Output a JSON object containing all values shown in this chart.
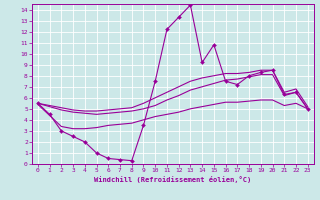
{
  "xlabel": "Windchill (Refroidissement éolien,°C)",
  "background_color": "#cce8e8",
  "grid_color": "#ffffff",
  "line_color": "#990099",
  "x_ticks": [
    0,
    1,
    2,
    3,
    4,
    5,
    6,
    7,
    8,
    9,
    10,
    11,
    12,
    13,
    14,
    15,
    16,
    17,
    18,
    19,
    20,
    21,
    22,
    23
  ],
  "y_ticks": [
    0,
    1,
    2,
    3,
    4,
    5,
    6,
    7,
    8,
    9,
    10,
    11,
    12,
    13,
    14
  ],
  "xlim": [
    -0.5,
    23.5
  ],
  "ylim": [
    0,
    14.5
  ],
  "series": [
    {
      "x": [
        0,
        1,
        2,
        3,
        4,
        5,
        6,
        7,
        8,
        9,
        10,
        11,
        12,
        13,
        14,
        15,
        16,
        17,
        18,
        19,
        20,
        21,
        22,
        23
      ],
      "y": [
        5.5,
        4.5,
        3.0,
        2.5,
        2.0,
        1.0,
        0.5,
        0.4,
        0.3,
        3.5,
        7.5,
        12.2,
        13.3,
        14.4,
        9.2,
        10.8,
        7.5,
        7.2,
        8.0,
        8.3,
        8.5,
        6.3,
        6.5,
        5.0
      ],
      "marker": "D",
      "markersize": 2.0,
      "linewidth": 0.8
    },
    {
      "x": [
        0,
        1,
        2,
        3,
        4,
        5,
        6,
        7,
        8,
        9,
        10,
        11,
        12,
        13,
        14,
        15,
        16,
        17,
        18,
        19,
        20,
        21,
        22,
        23
      ],
      "y": [
        5.5,
        5.3,
        5.1,
        4.9,
        4.8,
        4.8,
        4.9,
        5.0,
        5.1,
        5.5,
        6.0,
        6.5,
        7.0,
        7.5,
        7.8,
        8.0,
        8.2,
        8.2,
        8.3,
        8.5,
        8.5,
        6.5,
        6.8,
        5.2
      ],
      "marker": null,
      "markersize": 0,
      "linewidth": 0.8
    },
    {
      "x": [
        0,
        1,
        2,
        3,
        4,
        5,
        6,
        7,
        8,
        9,
        10,
        11,
        12,
        13,
        14,
        15,
        16,
        17,
        18,
        19,
        20,
        21,
        22,
        23
      ],
      "y": [
        5.5,
        5.2,
        4.9,
        4.7,
        4.6,
        4.5,
        4.6,
        4.7,
        4.8,
        5.0,
        5.3,
        5.8,
        6.2,
        6.7,
        7.0,
        7.3,
        7.6,
        7.7,
        7.9,
        8.1,
        8.1,
        6.2,
        6.5,
        5.0
      ],
      "marker": null,
      "markersize": 0,
      "linewidth": 0.8
    },
    {
      "x": [
        0,
        1,
        2,
        3,
        4,
        5,
        6,
        7,
        8,
        9,
        10,
        11,
        12,
        13,
        14,
        15,
        16,
        17,
        18,
        19,
        20,
        21,
        22,
        23
      ],
      "y": [
        5.4,
        4.4,
        3.4,
        3.2,
        3.2,
        3.3,
        3.5,
        3.6,
        3.7,
        4.0,
        4.3,
        4.5,
        4.7,
        5.0,
        5.2,
        5.4,
        5.6,
        5.6,
        5.7,
        5.8,
        5.8,
        5.3,
        5.5,
        5.0
      ],
      "marker": null,
      "markersize": 0,
      "linewidth": 0.8
    }
  ]
}
